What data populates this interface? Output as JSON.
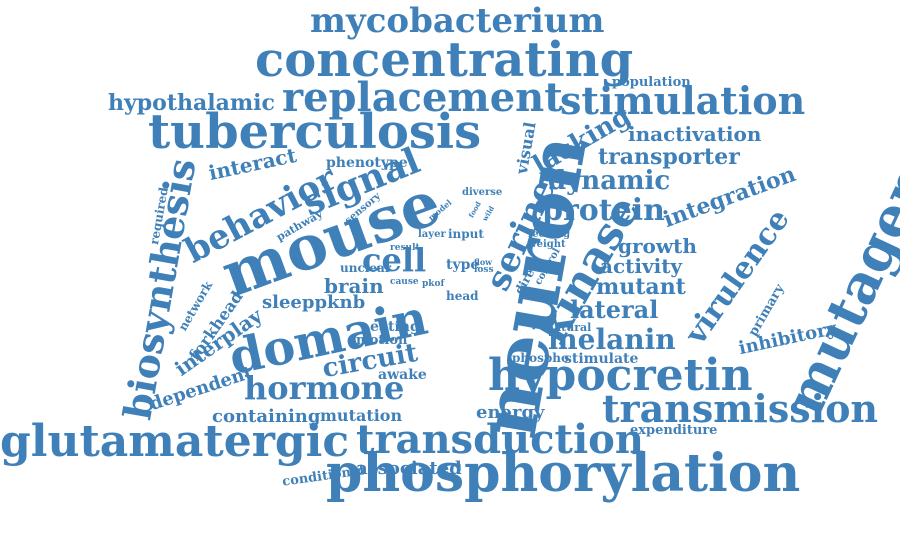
{
  "colors": {
    "word": "#3f80b8",
    "background": "#ffffff"
  },
  "words": [
    {
      "text": "mycobacterium"
    },
    {
      "text": "concentrating"
    },
    {
      "text": "replacement"
    },
    {
      "text": "stimulation"
    },
    {
      "text": "hypothalamic"
    },
    {
      "text": "tuberculosis"
    },
    {
      "text": "population"
    },
    {
      "text": "inactivation"
    },
    {
      "text": "transporter"
    },
    {
      "text": "lacking"
    },
    {
      "text": "visual"
    },
    {
      "text": "phenotype"
    },
    {
      "text": "interact"
    },
    {
      "text": "signal"
    },
    {
      "text": "behavior"
    },
    {
      "text": "dynamic"
    },
    {
      "text": "mutagenesis"
    },
    {
      "text": "neuron"
    },
    {
      "text": "mouse"
    },
    {
      "text": "biosynthesis"
    },
    {
      "text": "protein"
    },
    {
      "text": "integration"
    },
    {
      "text": "serine"
    },
    {
      "text": "kinase"
    },
    {
      "text": "growth"
    },
    {
      "text": "activity"
    },
    {
      "text": "virulence"
    },
    {
      "text": "cell"
    },
    {
      "text": "brain"
    },
    {
      "text": "mutant"
    },
    {
      "text": "lateral"
    },
    {
      "text": "sleeppknb"
    },
    {
      "text": "domain"
    },
    {
      "text": "melanin"
    },
    {
      "text": "inhibitory"
    },
    {
      "text": "primary"
    },
    {
      "text": "interplay"
    },
    {
      "text": "circuit"
    },
    {
      "text": "hypocretin"
    },
    {
      "text": "hormone"
    },
    {
      "text": "awake"
    },
    {
      "text": "transmission"
    },
    {
      "text": "dependent"
    },
    {
      "text": "containing"
    },
    {
      "text": "mutation"
    },
    {
      "text": "energy"
    },
    {
      "text": "expenditure"
    },
    {
      "text": "glutamatergic"
    },
    {
      "text": "transduction"
    },
    {
      "text": "associated"
    },
    {
      "text": "conditional"
    },
    {
      "text": "phosphorylation"
    },
    {
      "text": "required"
    },
    {
      "text": "network"
    },
    {
      "text": "forkhead"
    },
    {
      "text": "pathway"
    },
    {
      "text": "sensory"
    },
    {
      "text": "model"
    },
    {
      "text": "diverse"
    },
    {
      "text": "food"
    },
    {
      "text": "wild"
    },
    {
      "text": "layer"
    },
    {
      "text": "input"
    },
    {
      "text": "feeding"
    },
    {
      "text": "weight"
    },
    {
      "text": "result"
    },
    {
      "text": "unclear"
    },
    {
      "text": "type"
    },
    {
      "text": "flow"
    },
    {
      "text": "loss"
    },
    {
      "text": "direct"
    },
    {
      "text": "control"
    },
    {
      "text": "cause"
    },
    {
      "text": "pkof"
    },
    {
      "text": "head"
    },
    {
      "text": "natural"
    },
    {
      "text": "eating"
    },
    {
      "text": "motion"
    },
    {
      "text": "phospho"
    },
    {
      "text": "stimulate"
    }
  ]
}
